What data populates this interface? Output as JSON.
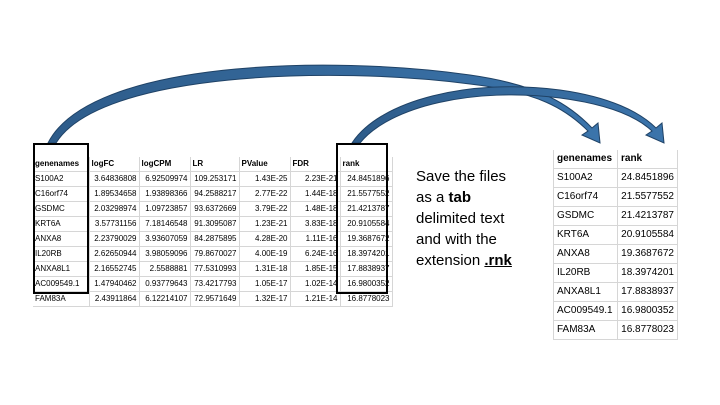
{
  "left_table": {
    "headers": [
      "genenames",
      "logFC",
      "logCPM",
      "LR",
      "PValue",
      "FDR",
      "rank"
    ],
    "rows": [
      [
        "S100A2",
        "3.64836808",
        "6.92509974",
        "109.253171",
        "1.43E-25",
        "2.23E-21",
        "24.8451896"
      ],
      [
        "C16orf74",
        "1.89534658",
        "1.93898366",
        "94.2588217",
        "2.77E-22",
        "1.44E-18",
        "21.5577552"
      ],
      [
        "GSDMC",
        "2.03298974",
        "1.09723857",
        "93.6372669",
        "3.79E-22",
        "1.48E-18",
        "21.4213787"
      ],
      [
        "KRT6A",
        "3.57731156",
        "7.18146548",
        "91.3095087",
        "1.23E-21",
        "3.83E-18",
        "20.9105584"
      ],
      [
        "ANXA8",
        "2.23790029",
        "3.93607059",
        "84.2875895",
        "4.28E-20",
        "1.11E-16",
        "19.3687672"
      ],
      [
        "IL20RB",
        "2.62650944",
        "3.98059096",
        "79.8670027",
        "4.00E-19",
        "6.24E-16",
        "18.3974201"
      ],
      [
        "ANXA8L1",
        "2.16552745",
        "2.5588881",
        "77.5310993",
        "1.31E-18",
        "1.85E-15",
        "17.8838937"
      ],
      [
        "AC009549.1",
        "1.47940462",
        "0.93779643",
        "73.4217793",
        "1.05E-17",
        "1.02E-14",
        "16.9800352"
      ],
      [
        "FAM83A",
        "2.43911864",
        "6.12214107",
        "72.9571649",
        "1.32E-17",
        "1.21E-14",
        "16.8778023"
      ]
    ]
  },
  "right_table": {
    "headers": [
      "genenames",
      "rank"
    ],
    "rows": [
      [
        "S100A2",
        "24.8451896"
      ],
      [
        "C16orf74",
        "21.5577552"
      ],
      [
        "GSDMC",
        "21.4213787"
      ],
      [
        "KRT6A",
        "20.9105584"
      ],
      [
        "ANXA8",
        "19.3687672"
      ],
      [
        "IL20RB",
        "18.3974201"
      ],
      [
        "ANXA8L1",
        "17.8838937"
      ],
      [
        "AC009549.1",
        "16.9800352"
      ],
      [
        "FAM83A",
        "16.8778023"
      ]
    ]
  },
  "instruction": {
    "line1": "Save the files",
    "line2_pre": "as a ",
    "line2_bold": "tab",
    "line3": "delimited text",
    "line4": "and with the",
    "line5_pre": "extension ",
    "line5_ext": ".rnk"
  },
  "colors": {
    "arrow": "#2e5c8a",
    "active_header": "#1e7b3c",
    "grid": "#d6d6d6"
  },
  "icons": [
    "curved-arrow-genenames",
    "curved-arrow-rank"
  ]
}
